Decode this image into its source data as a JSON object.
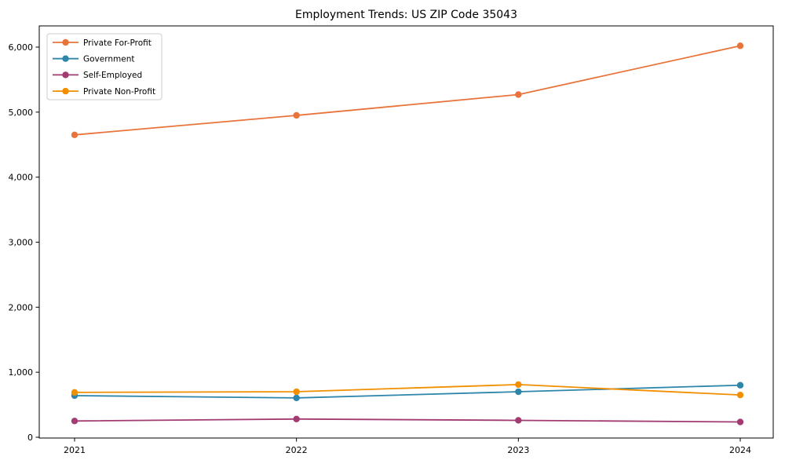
{
  "chart_data": {
    "type": "line",
    "title": "Employment Trends: US ZIP Code 35043",
    "xlabel": "",
    "ylabel": "",
    "categories": [
      "2021",
      "2022",
      "2023",
      "2024"
    ],
    "series": [
      {
        "name": "Private For-Profit",
        "color": "#e8743b",
        "values": [
          4650,
          4950,
          5270,
          6020
        ]
      },
      {
        "name": "Government",
        "color": "#2e86ab",
        "values": [
          640,
          605,
          700,
          800
        ]
      },
      {
        "name": "Self-Employed",
        "color": "#a23b72",
        "values": [
          250,
          280,
          260,
          235
        ]
      },
      {
        "name": "Private Non-Profit",
        "color": "#f18f01",
        "values": [
          690,
          700,
          810,
          650
        ]
      }
    ],
    "yticks": [
      0,
      1000,
      2000,
      3000,
      4000,
      5000,
      6000
    ],
    "y_tick_labels": [
      "0",
      "1,000",
      "2,000",
      "3,000",
      "4,000",
      "5,000",
      "6,000"
    ],
    "ylim": [
      0,
      6326
    ],
    "grid": false,
    "legend_position": "upper-left",
    "frame_color": "#000000",
    "legend_border_color": "#cccccc",
    "background_color": "#ffffff"
  }
}
